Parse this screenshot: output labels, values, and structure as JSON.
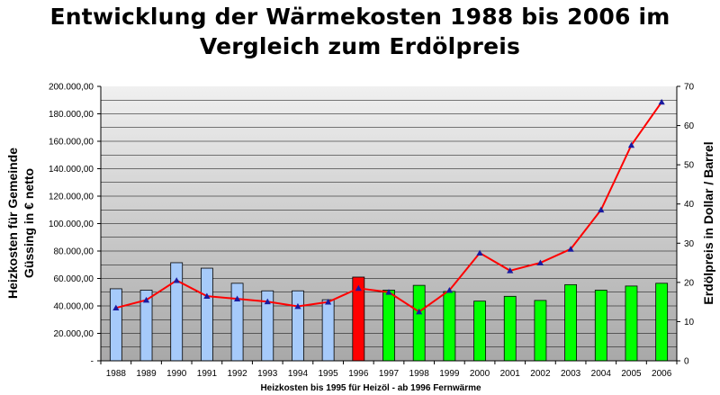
{
  "chart_data": {
    "type": "bar",
    "title_line1": "Entwicklung der Wärmekosten 1988 bis 2006 im",
    "title_line2": "Vergleich zum Erdölpreis",
    "xlabel": "Heizkosten bis 1995 für Heizöl - ab 1996 Fernwärme",
    "ylabel_left_line1": "Heizkosten für Gemeinde",
    "ylabel_left_line2": "Güssing in € netto",
    "ylabel_right": "Erdölpreis in Dollar / Barrel",
    "categories": [
      "1988",
      "1989",
      "1990",
      "1991",
      "1992",
      "1993",
      "1994",
      "1995",
      "1996",
      "1997",
      "1998",
      "1999",
      "2000",
      "2001",
      "2002",
      "2003",
      "2004",
      "2005",
      "2006"
    ],
    "ylim_left": [
      0,
      200000
    ],
    "ylim_right": [
      0,
      70
    ],
    "yticks_left": [
      "-",
      "20.000,00",
      "40.000,00",
      "60.000,00",
      "80.000,00",
      "100.000,00",
      "120.000,00",
      "140.000,00",
      "160.000,00",
      "180.000,00",
      "200.000,00"
    ],
    "yticks_right": [
      "0",
      "10",
      "20",
      "30",
      "40",
      "50",
      "60",
      "70"
    ],
    "grid": true,
    "series": [
      {
        "type": "bar",
        "axis": "left",
        "values": [
          52500,
          51500,
          71500,
          67500,
          56500,
          51000,
          51000,
          44500,
          61000,
          51500,
          55000,
          50500,
          43500,
          47000,
          44000,
          55500,
          51500,
          54500,
          56500
        ],
        "colors": [
          "#a6cafa",
          "#a6cafa",
          "#a6cafa",
          "#a6cafa",
          "#a6cafa",
          "#a6cafa",
          "#a6cafa",
          "#a6cafa",
          "#ff0000",
          "#00ff00",
          "#00ff00",
          "#00ff00",
          "#00ff00",
          "#00ff00",
          "#00ff00",
          "#00ff00",
          "#00ff00",
          "#00ff00",
          "#00ff00"
        ]
      },
      {
        "type": "line",
        "axis": "right",
        "color": "#ff0000",
        "marker_color": "#1a1aa0",
        "values": [
          13.5,
          15.5,
          20.5,
          16.5,
          15.8,
          15.1,
          13.9,
          15.0,
          18.5,
          17.5,
          12.5,
          18.0,
          27.5,
          23.0,
          25.0,
          28.5,
          38.5,
          55.0,
          66.0
        ]
      }
    ]
  }
}
